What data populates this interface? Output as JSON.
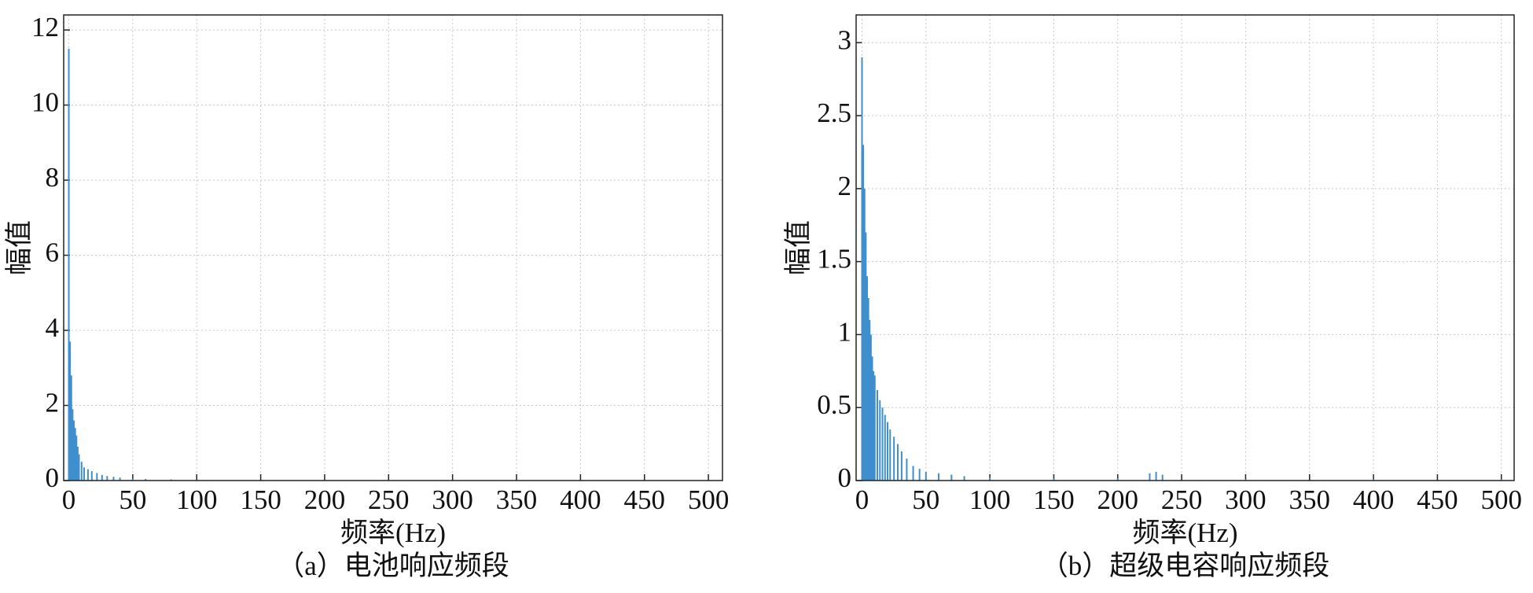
{
  "chart_data": [
    {
      "type": "bar",
      "caption": "（a）电池响应频段",
      "x_label": "频率(Hz)",
      "y_label": "幅值",
      "color": "#3f8fcf",
      "grid": true,
      "xlim": [
        -4,
        511
      ],
      "ylim": [
        0,
        12.4
      ],
      "xticks": [
        0,
        50,
        100,
        150,
        200,
        250,
        300,
        350,
        400,
        450,
        500
      ],
      "yticks": [
        0,
        2,
        4,
        6,
        8,
        10,
        12
      ],
      "x": [
        0,
        1,
        2,
        3,
        4,
        5,
        6,
        7,
        8,
        10,
        12,
        15,
        18,
        22,
        26,
        30,
        35,
        40,
        50,
        60,
        80,
        100
      ],
      "values": [
        11.5,
        3.7,
        2.8,
        1.9,
        1.6,
        1.4,
        1.2,
        0.9,
        0.7,
        0.5,
        0.35,
        0.3,
        0.25,
        0.2,
        0.15,
        0.12,
        0.1,
        0.08,
        0.05,
        0.04,
        0.03,
        0.02
      ]
    },
    {
      "type": "bar",
      "caption": "（b）超级电容响应频段",
      "x_label": "频率(Hz)",
      "y_label": "幅值",
      "color": "#3f8fcf",
      "grid": true,
      "xlim": [
        -4.6,
        510
      ],
      "ylim": [
        0,
        3.19
      ],
      "xticks": [
        0,
        50,
        100,
        150,
        200,
        250,
        300,
        350,
        400,
        450,
        500
      ],
      "yticks": [
        0,
        0.5,
        1,
        1.5,
        2,
        2.5,
        3
      ],
      "x": [
        0,
        1,
        2,
        3,
        4,
        5,
        6,
        7,
        8,
        9,
        10,
        12,
        14,
        16,
        18,
        20,
        22,
        25,
        28,
        31,
        35,
        40,
        45,
        50,
        60,
        70,
        80,
        100,
        150,
        200,
        225,
        230,
        235,
        300,
        400,
        500
      ],
      "values": [
        2.9,
        2.3,
        2.0,
        1.7,
        1.4,
        1.25,
        1.1,
        1.0,
        0.85,
        0.75,
        0.72,
        0.62,
        0.55,
        0.5,
        0.45,
        0.4,
        0.35,
        0.3,
        0.25,
        0.2,
        0.15,
        0.1,
        0.08,
        0.06,
        0.05,
        0.04,
        0.03,
        0.02,
        0.015,
        0.015,
        0.05,
        0.06,
        0.04,
        0.01,
        0.01,
        0.01
      ]
    }
  ]
}
